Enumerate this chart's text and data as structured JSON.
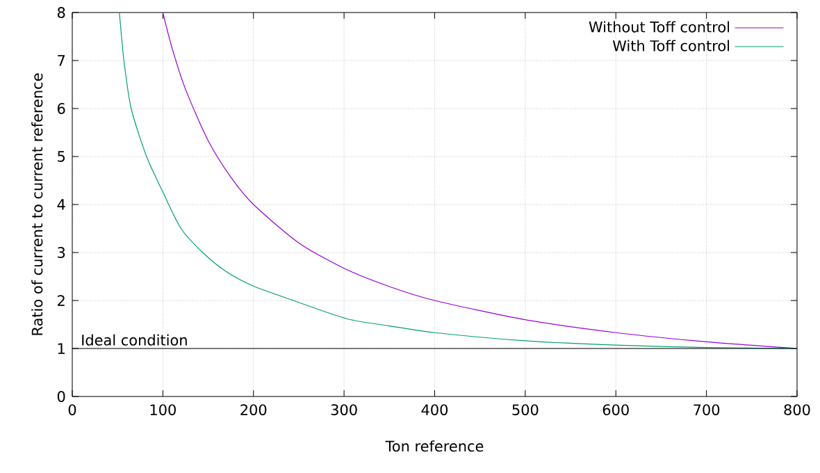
{
  "chart_data": {
    "type": "line",
    "xlabel": "Ton reference",
    "ylabel": "Ratio of current to current reference",
    "xlim": [
      0,
      800
    ],
    "ylim": [
      0,
      8
    ],
    "xticks": [
      0,
      100,
      200,
      300,
      400,
      500,
      600,
      700,
      800
    ],
    "yticks": [
      0,
      1,
      2,
      3,
      4,
      5,
      6,
      7,
      8
    ],
    "grid": true,
    "legend": "top right",
    "line_style": "solid",
    "marker": "none",
    "ref_lines": [
      {
        "axis": "y",
        "value": 1,
        "label": "Ideal condition",
        "color": "#000000"
      }
    ],
    "series": [
      {
        "name": "Without Toff control",
        "color": "#9400d3",
        "x": [
          100,
          110,
          125,
          150,
          175,
          200,
          250,
          300,
          350,
          400,
          500,
          600,
          700,
          800
        ],
        "values": [
          8,
          7.27,
          6.4,
          5.33,
          4.57,
          4,
          3.2,
          2.67,
          2.29,
          2,
          1.6,
          1.33,
          1.14,
          1
        ]
      },
      {
        "name": "With Toff control",
        "color": "#009e73",
        "x": [
          52,
          57,
          65,
          82,
          100,
          120,
          144,
          170,
          200,
          244,
          303,
          350,
          400,
          500,
          600,
          700,
          800
        ],
        "values": [
          8,
          7,
          6,
          5,
          4.26,
          3.5,
          3,
          2.6,
          2.3,
          2,
          1.62,
          1.47,
          1.33,
          1.16,
          1.07,
          1.02,
          1
        ]
      }
    ]
  }
}
